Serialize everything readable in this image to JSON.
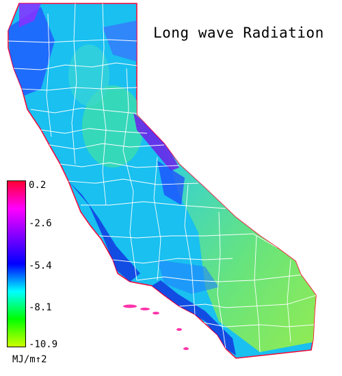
{
  "title": "Long wave Radiation",
  "legend": {
    "unit": "MJ/m↑2",
    "ticks": [
      "0.2",
      "-2.6",
      "-5.4",
      "-8.1",
      "-10.9"
    ],
    "colors": [
      "#ff0033",
      "#ff00ff",
      "#7f00ff",
      "#0000ff",
      "#00ffff",
      "#00ff00",
      "#ccff00"
    ]
  },
  "colors": {
    "land_base": "#19c0f0",
    "high_desert": "#66e080",
    "central_valley": "#33d8c8",
    "mountains": "#2060ff",
    "coast": "#0030ff",
    "county_lines": "#ffffff"
  }
}
